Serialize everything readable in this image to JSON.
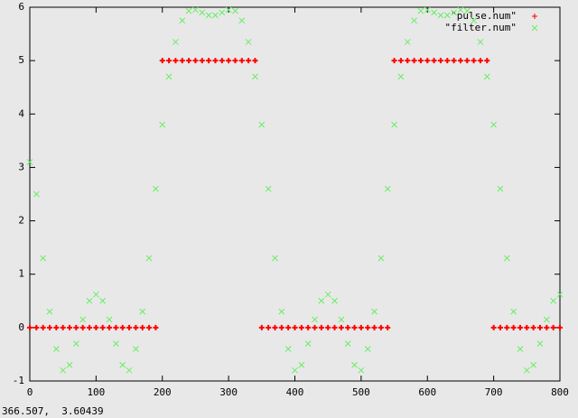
{
  "chart_data": {
    "type": "scatter",
    "x": [
      0,
      10,
      20,
      30,
      40,
      50,
      60,
      70,
      80,
      90,
      100,
      110,
      120,
      130,
      140,
      150,
      160,
      170,
      180,
      190,
      200,
      210,
      220,
      230,
      240,
      250,
      260,
      270,
      280,
      290,
      300,
      310,
      320,
      330,
      340,
      350,
      360,
      370,
      380,
      390,
      400,
      410,
      420,
      430,
      440,
      450,
      460,
      470,
      480,
      490,
      500,
      510,
      520,
      530,
      540,
      550,
      560,
      570,
      580,
      590,
      600,
      610,
      620,
      630,
      640,
      650,
      660,
      670,
      680,
      690,
      700,
      710,
      720,
      730,
      740,
      750,
      760,
      770,
      780,
      790,
      800
    ],
    "series": [
      {
        "name": "\"pulse.num\"",
        "color": "#ff0000",
        "marker": "+",
        "values": [
          0,
          0,
          0,
          0,
          0,
          0,
          0,
          0,
          0,
          0,
          0,
          0,
          0,
          0,
          0,
          0,
          0,
          0,
          0,
          0,
          5,
          5,
          5,
          5,
          5,
          5,
          5,
          5,
          5,
          5,
          5,
          5,
          5,
          5,
          5,
          0,
          0,
          0,
          0,
          0,
          0,
          0,
          0,
          0,
          0,
          0,
          0,
          0,
          0,
          0,
          0,
          0,
          0,
          0,
          0,
          5,
          5,
          5,
          5,
          5,
          5,
          5,
          5,
          5,
          5,
          5,
          5,
          5,
          5,
          5,
          0,
          0,
          0,
          0,
          0,
          0,
          0,
          0,
          0,
          0,
          0
        ]
      },
      {
        "name": "\"filter.num\"",
        "color": "#66ee66",
        "marker": "x",
        "values": [
          3.1,
          2.5,
          1.3,
          0.3,
          -0.4,
          -0.8,
          -0.7,
          -0.3,
          0.15,
          0.5,
          0.62,
          0.5,
          0.15,
          -0.3,
          -0.7,
          -0.8,
          -0.4,
          0.3,
          1.3,
          2.6,
          3.8,
          4.7,
          5.35,
          5.75,
          5.93,
          5.95,
          5.9,
          5.85,
          5.85,
          5.9,
          5.95,
          5.93,
          5.75,
          5.35,
          4.7,
          3.8,
          2.6,
          1.3,
          0.3,
          -0.4,
          -0.8,
          -0.7,
          -0.3,
          0.15,
          0.5,
          0.62,
          0.5,
          0.15,
          -0.3,
          -0.7,
          -0.8,
          -0.4,
          0.3,
          1.3,
          2.6,
          3.8,
          4.7,
          5.35,
          5.75,
          5.93,
          5.95,
          5.9,
          5.85,
          5.85,
          5.9,
          5.95,
          5.93,
          5.75,
          5.35,
          4.7,
          3.8,
          2.6,
          1.3,
          0.3,
          -0.4,
          -0.8,
          -0.7,
          -0.3,
          0.15,
          0.5,
          0.62
        ]
      }
    ],
    "xlim": [
      0,
      800
    ],
    "xticks": [
      0,
      100,
      200,
      300,
      400,
      500,
      600,
      700,
      800
    ],
    "ylim": [
      -1,
      6
    ],
    "yticks": [
      -1,
      0,
      1,
      2,
      3,
      4,
      5,
      6
    ],
    "legend": "top right"
  },
  "status_bar": {
    "text": "366.507,  3.60439"
  }
}
